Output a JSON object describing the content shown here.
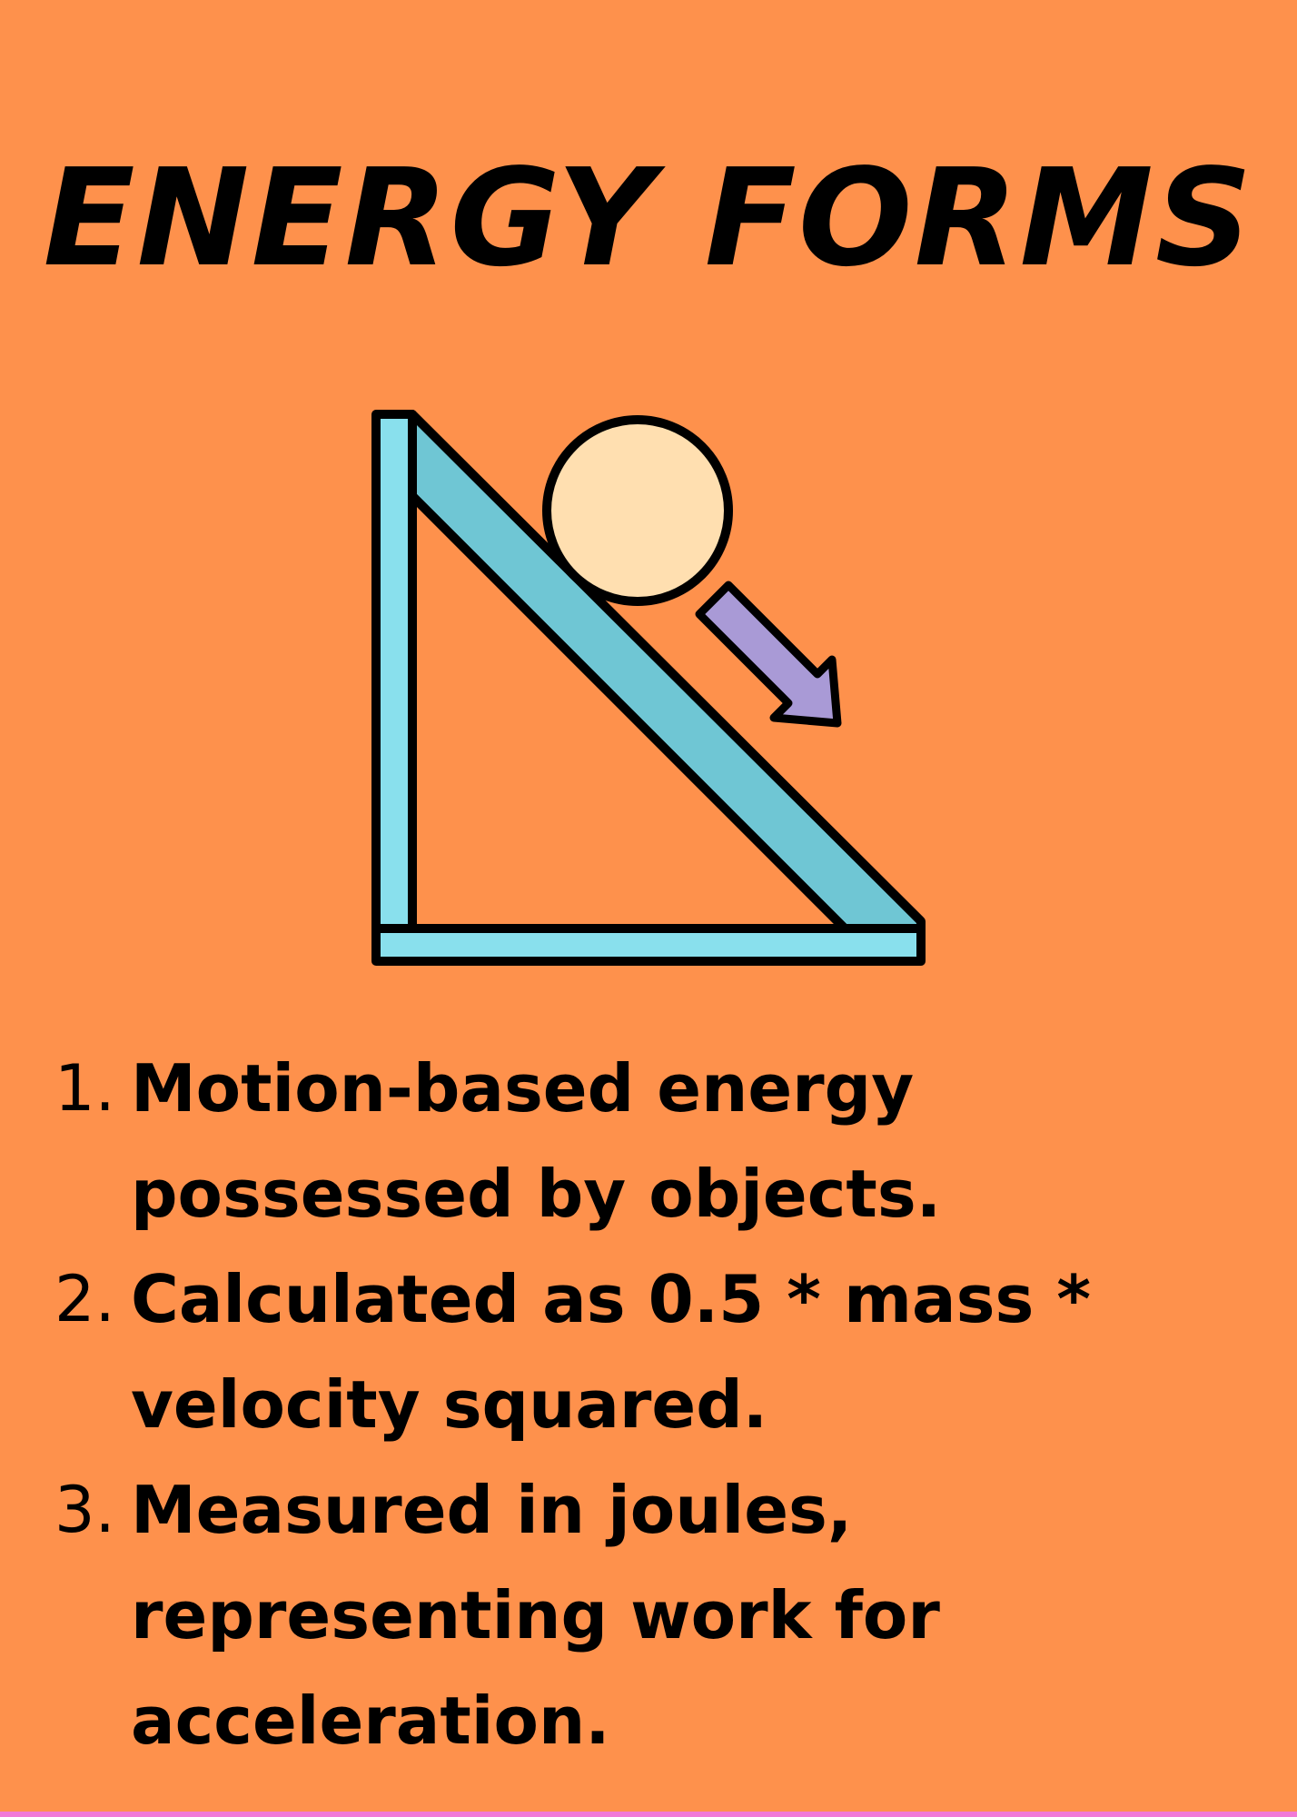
{
  "title": "ENERGY FORMS",
  "facts": [
    {
      "number": "1.",
      "text": "Motion-based energy possessed by objects."
    },
    {
      "number": "2.",
      "text": "Calculated as 0.5 * mass * velocity squared."
    },
    {
      "number": "3.",
      "text": "Measured in joules, representing work for acceleration."
    }
  ],
  "colors": {
    "background": "#fe914c",
    "ramp_light": "#89e0ed",
    "ramp_dark": "#6fc6d4",
    "ball": "#ffdfb0",
    "arrow": "#a99ad6",
    "outline": "#000000",
    "bottom_strip": "#f17ad7"
  },
  "icons": [
    "ramp-icon",
    "ball-icon",
    "down-arrow-icon"
  ]
}
